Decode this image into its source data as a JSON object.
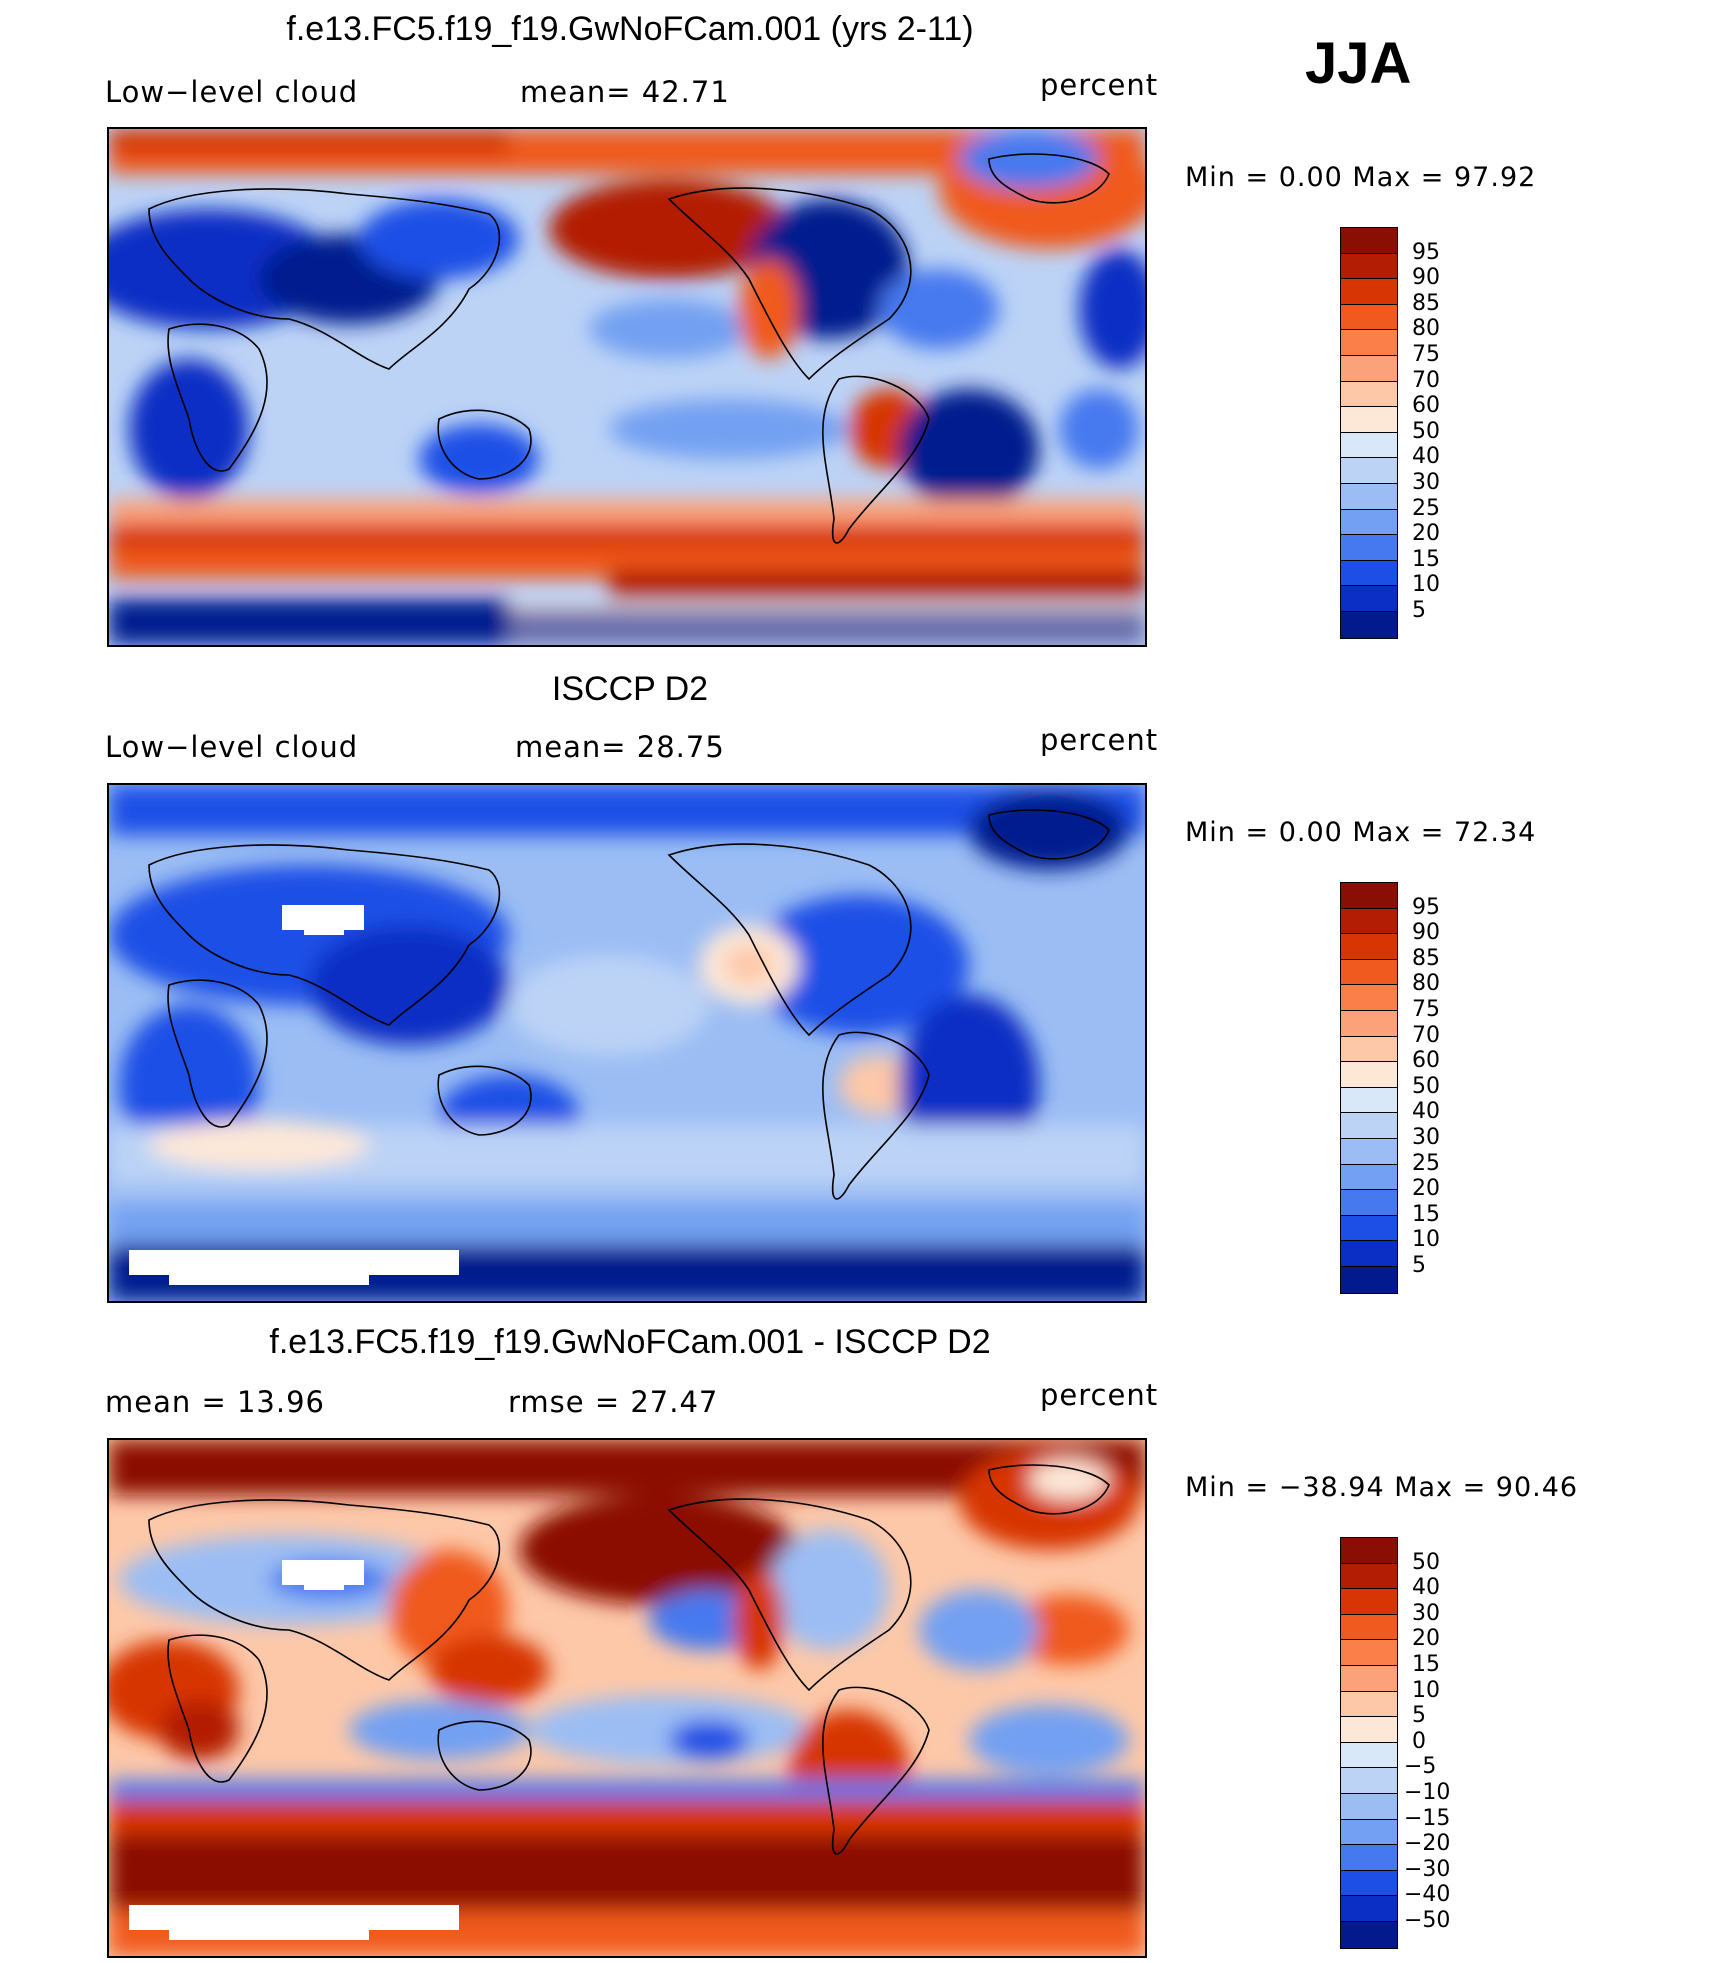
{
  "season": "JJA",
  "panels": [
    {
      "title": "f.e13.FC5.f19_f19.GwNoFCam.001 (yrs 2-11)",
      "left_label": "Low−level cloud",
      "mid_label": "mean=   42.71",
      "units": "percent",
      "stats": "Min  =     0.00  Max  =    97.92",
      "ticks": [
        "95",
        "90",
        "85",
        "80",
        "75",
        "70",
        "60",
        "50",
        "40",
        "30",
        "25",
        "20",
        "15",
        "10",
        "5"
      ]
    },
    {
      "title": "ISCCP D2",
      "left_label": "Low−level cloud",
      "mid_label": "mean=   28.75",
      "units": "percent",
      "stats": "Min  =     0.00  Max  =    72.34",
      "ticks": [
        "95",
        "90",
        "85",
        "80",
        "75",
        "70",
        "60",
        "50",
        "40",
        "30",
        "25",
        "20",
        "15",
        "10",
        "5"
      ]
    },
    {
      "title": "f.e13.FC5.f19_f19.GwNoFCam.001 - ISCCP D2",
      "left_label": "mean  =    13.96",
      "mid_label": "rmse  =    27.47",
      "units": "percent",
      "stats": "Min  = −38.94  Max  =    90.46",
      "ticks": [
        "50",
        "40",
        "30",
        "20",
        "15",
        "10",
        "5",
        "0",
        "−5",
        "−10",
        "−15",
        "−20",
        "−30",
        "−40",
        "−50"
      ]
    }
  ],
  "colors": {
    "abs_scale": [
      "#8b0e04",
      "#b31d04",
      "#d73504",
      "#f05a1e",
      "#fb7f48",
      "#fca27a",
      "#fdc8a8",
      "#fde8d8",
      "#d8e8f8",
      "#bcd3f6",
      "#9bbdf4",
      "#73a0f2",
      "#4679ef",
      "#1d4fe6",
      "#0b2fc4",
      "#031a8e"
    ],
    "diff_scale": [
      "#8b0e04",
      "#b31d04",
      "#d73504",
      "#f05a1e",
      "#fb7f48",
      "#fca27a",
      "#fdc8a8",
      "#fde8d8",
      "#d8e8f8",
      "#bcd3f6",
      "#9bbdf4",
      "#73a0f2",
      "#4679ef",
      "#1d4fe6",
      "#0b2fc4",
      "#031a8e"
    ]
  }
}
